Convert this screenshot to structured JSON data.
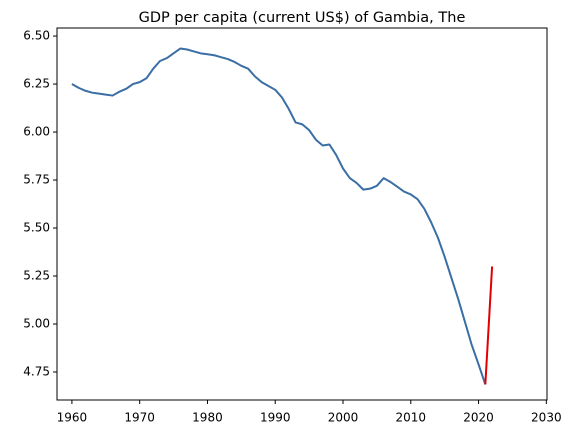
{
  "chart_data": {
    "type": "line",
    "title": "GDP per capita (current US$) of Gambia, The",
    "series": [
      {
        "color": "#3a6ea5",
        "x": [
          1960,
          1961,
          1962,
          1963,
          1964,
          1965,
          1966,
          1967,
          1968,
          1969,
          1970,
          1971,
          1972,
          1973,
          1974,
          1975,
          1976,
          1977,
          1978,
          1979,
          1980,
          1981,
          1982,
          1983,
          1984,
          1985,
          1986,
          1987,
          1988,
          1989,
          1990,
          1991,
          1992,
          1993,
          1994,
          1995,
          1996,
          1997,
          1998,
          1999,
          2000,
          2001,
          2002,
          2003,
          2004,
          2005,
          2006,
          2007,
          2008,
          2009,
          2010,
          2011,
          2012,
          2013,
          2014,
          2015,
          2016,
          2017,
          2018,
          2019,
          2020,
          2021
        ],
        "values": [
          6.25,
          6.23,
          6.215,
          6.205,
          6.2,
          6.195,
          6.19,
          6.21,
          6.225,
          6.25,
          6.26,
          6.28,
          6.33,
          6.37,
          6.385,
          6.41,
          6.435,
          6.43,
          6.42,
          6.41,
          6.405,
          6.4,
          6.39,
          6.38,
          6.365,
          6.345,
          6.33,
          6.29,
          6.26,
          6.24,
          6.22,
          6.18,
          6.12,
          6.05,
          6.04,
          6.01,
          5.96,
          5.93,
          5.935,
          5.88,
          5.81,
          5.76,
          5.735,
          5.7,
          5.705,
          5.72,
          5.76,
          5.74,
          5.715,
          5.69,
          5.675,
          5.65,
          5.6,
          5.53,
          5.45,
          5.35,
          5.24,
          5.13,
          5.01,
          4.89,
          4.79,
          4.685
        ]
      },
      {
        "color": "#e00000",
        "x": [
          2021,
          2022
        ],
        "values": [
          4.685,
          5.3
        ]
      }
    ],
    "xlim": [
      1957.8,
      2030.1
    ],
    "xticks": [
      1960,
      1970,
      1980,
      1990,
      2000,
      2010,
      2020,
      2030
    ],
    "ylim": [
      4.604,
      6.542
    ],
    "yticks": [
      4.75,
      {
        "value": 5,
        "label": "5.00"
      },
      5.25,
      {
        "value": 5.5,
        "label": "5.50"
      },
      5.75,
      {
        "value": 6,
        "label": "6.00"
      },
      6.25,
      {
        "value": 6.5,
        "label": "6.50"
      }
    ]
  }
}
